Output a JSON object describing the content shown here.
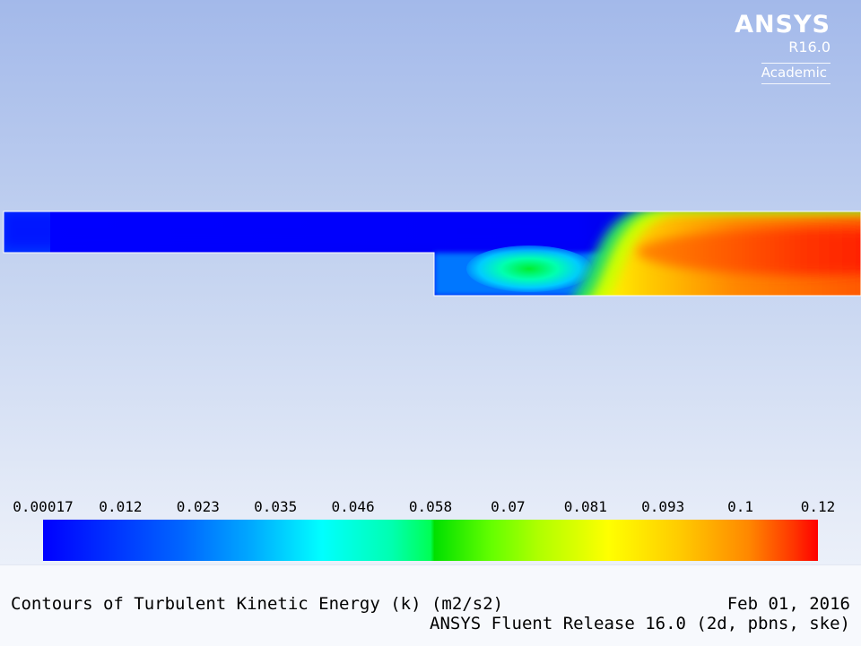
{
  "logo": {
    "brand": "ANSYS",
    "release": "R16.0",
    "edition": "Academic"
  },
  "footer": {
    "title": "Contours of Turbulent Kinetic Energy (k) (m2/s2)",
    "date": "Feb 01, 2016",
    "release": "ANSYS Fluent Release 16.0 (2d, pbns, ske)"
  },
  "chart_data": {
    "type": "heatmap",
    "title": "Contours of Turbulent Kinetic Energy (k) (m2/s2)",
    "quantity": "Turbulent Kinetic Energy (k)",
    "unit": "m2/s2",
    "colormap": "rainbow (blue to red)",
    "color_stops": [
      "#0000ff",
      "#00ffff",
      "#00ff00",
      "#ffff00",
      "#ff0000"
    ],
    "range": [
      0.00017,
      0.12
    ],
    "legend_ticks": [
      "0.00017",
      "0.012",
      "0.023",
      "0.035",
      "0.046",
      "0.058",
      "0.07",
      "0.081",
      "0.093",
      "0.1",
      "0.12"
    ],
    "legend_placement": "bottom",
    "geometry": "backward-facing step channel",
    "regions": {
      "inlet_channel": "low k (blue) throughout",
      "recirculation_zone": "moderate k (cyan to green) below shear layer",
      "shear_layer": "sharp gradient from blue through green and yellow",
      "downstream_core": "high k (orange to red), maximum near centerline"
    }
  }
}
